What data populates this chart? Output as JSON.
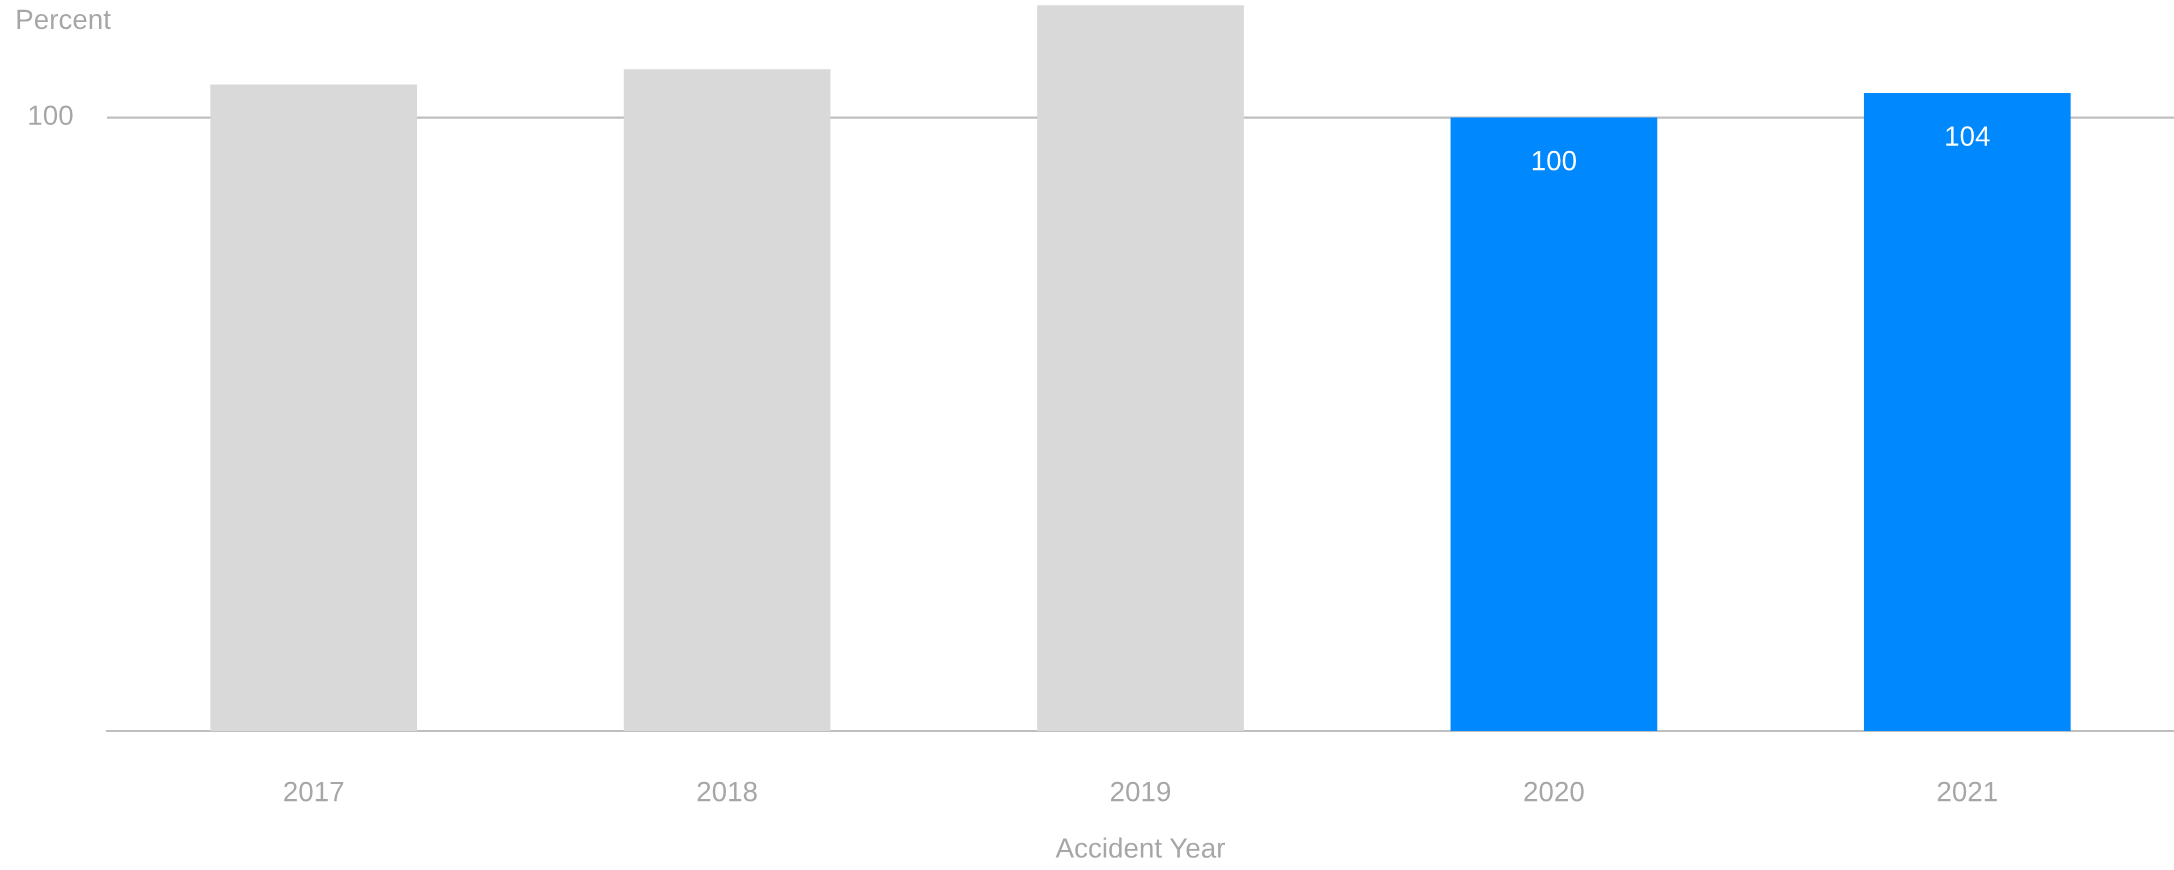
{
  "chart_data": {
    "type": "bar",
    "xlabel": "Accident Year",
    "ylabel": "Percent",
    "categories": [
      "2017",
      "2018",
      "2019",
      "2020",
      "2021"
    ],
    "values": [
      105.4,
      107.9,
      118.3,
      100,
      104
    ],
    "colors": [
      "#d9d9d9",
      "#d9d9d9",
      "#d9d9d9",
      "#0088ff",
      "#0088ff"
    ],
    "value_labels": [
      null,
      null,
      null,
      "100",
      "104"
    ],
    "ref_lines": [
      {
        "axis": "y",
        "value": 100,
        "label": "100",
        "color": "#bfbfbf"
      }
    ]
  }
}
